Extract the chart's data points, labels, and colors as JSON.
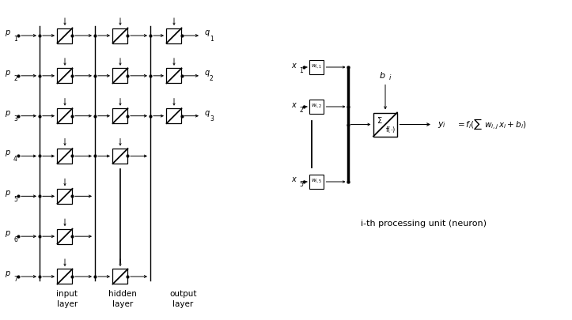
{
  "bg_color": "#ffffff",
  "line_color": "#000000",
  "n_inputs": 7,
  "n_hidden_shown": 4,
  "n_outputs": 3,
  "input_labels_base": [
    "p",
    "p",
    "p",
    "p",
    "p",
    "p",
    "p"
  ],
  "input_labels_sub": [
    "1",
    "2",
    "3",
    "4",
    "5",
    "6",
    "7"
  ],
  "output_labels_base": [
    "q",
    "q",
    "q"
  ],
  "output_labels_sub": [
    "1",
    "2",
    "3"
  ],
  "x_labels_base": [
    "x",
    "x",
    "x"
  ],
  "x_labels_sub": [
    "1",
    "2",
    "5"
  ],
  "w_labels": [
    "w$_{i,1}$",
    "w$_{i,2}$",
    "w$_{i,5}$"
  ],
  "layer_label1": "input\nlayer",
  "layer_label2": "hidden\nlayer",
  "layer_label3": "output\nlayer",
  "caption": "i-th processing unit (neuron)"
}
